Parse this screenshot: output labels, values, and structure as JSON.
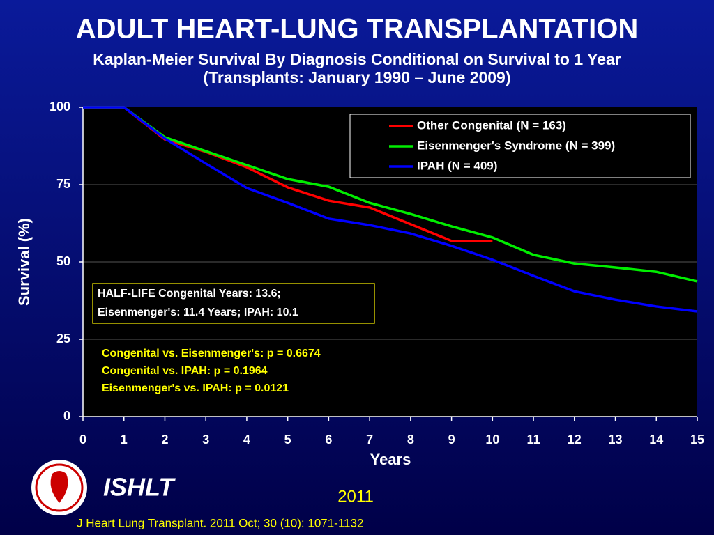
{
  "chart_data": {
    "type": "line",
    "title": "ADULT HEART-LUNG TRANSPLANTATION",
    "subtitle": "Kaplan-Meier Survival By Diagnosis Conditional on Survival to 1 Year",
    "subtitle_2": "(Transplants: January 1990 – June 2009)",
    "x_label": "Years",
    "y_label": "Survival (%)",
    "x": [
      0,
      1,
      2,
      3,
      4,
      5,
      6,
      7,
      8,
      9,
      10,
      11,
      12,
      13,
      14,
      15
    ],
    "xlim": [
      0,
      15
    ],
    "xticks": [
      0,
      1,
      2,
      3,
      4,
      5,
      6,
      7,
      8,
      9,
      10,
      11,
      12,
      13,
      14,
      15
    ],
    "ylim": [
      0,
      100
    ],
    "yticks": [
      0,
      25,
      50,
      75,
      100
    ],
    "grid": true,
    "legend": "top-right",
    "series": [
      {
        "name": "Other Congenital (N = 163)",
        "color": "#ff0000",
        "values": [
          100,
          100,
          89.6,
          85.6,
          80.6,
          74.1,
          69.8,
          67.6,
          62.2,
          56.8,
          56.8,
          null,
          null,
          null,
          null,
          null
        ]
      },
      {
        "name": "Eisenmenger's Syndrome  (N = 399)",
        "color": "#00ee00",
        "values": [
          100,
          100,
          90.3,
          85.8,
          81.3,
          76.8,
          74.3,
          69.1,
          65.5,
          61.5,
          57.9,
          52.3,
          49.5,
          48.2,
          46.8,
          43.7
        ]
      },
      {
        "name": "IPAH (N = 409)",
        "color": "#0000ff",
        "values": [
          100,
          100,
          89.9,
          81.8,
          73.9,
          69.1,
          64,
          61.9,
          59.2,
          55.2,
          50.7,
          45.5,
          40.5,
          37.8,
          35.6,
          34
        ]
      }
    ],
    "half_life": [
      "HALF-LIFE  Congenital Years: 13.6;",
      "Eisenmenger's: 11.4 Years; IPAH: 10.1"
    ],
    "p_values": [
      "Congenital vs. Eisenmenger's: p =  0.6674",
      "Congenital vs. IPAH: p = 0.1964",
      "Eisenmenger's vs. IPAH: p = 0.0121"
    ]
  },
  "footer": {
    "org": "ISHLT",
    "year": "2011",
    "citation": "J Heart Lung Transplant. 2011 Oct; 30 (10): 1071-1132"
  }
}
